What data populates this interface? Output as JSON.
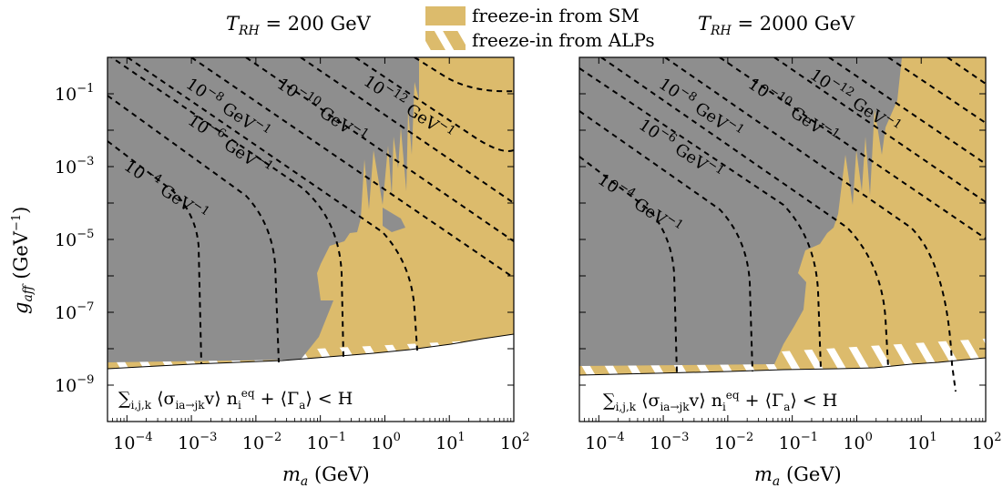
{
  "legend": {
    "sm_label": "freeze-in from SM",
    "alps_label": "freeze-in from ALPs"
  },
  "colors": {
    "sm_fill": "#dcbb6c",
    "excluded_fill": "#8e8e8e",
    "allowed_fill": "#ffffff",
    "contour": "#000000"
  },
  "chart_data": [
    {
      "type": "area",
      "title": "T_RH = 200 GeV",
      "xlabel": "m_a (GeV)",
      "ylabel": "g_aff (GeV^-1)",
      "xscale": "log",
      "yscale": "log",
      "xlim": [
        5e-05,
        100
      ],
      "ylim": [
        1e-10,
        1
      ],
      "x_ticks": [
        "10^-4",
        "10^-3",
        "10^-2",
        "10^-1",
        "10^0",
        "10^1",
        "10^2"
      ],
      "y_ticks": [
        "10^-1",
        "10^-3",
        "10^-5",
        "10^-7",
        "10^-9"
      ],
      "regions": [
        {
          "name": "freeze-in from SM",
          "style": "solid"
        },
        {
          "name": "freeze-in from ALPs",
          "style": "hatched"
        },
        {
          "name": "excluded",
          "style": "gray"
        }
      ],
      "contour_labels": [
        {
          "value": "10^-4 GeV^-1"
        },
        {
          "value": "10^-6 GeV^-1"
        },
        {
          "value": "10^-8 GeV^-1"
        },
        {
          "value": "10^-10 GeV^-1"
        },
        {
          "value": "10^-12 GeV^-1"
        }
      ],
      "vertical_contour_x": [
        0.0015,
        0.025,
        0.3,
        3.5
      ],
      "annotation": "Σ_{i,j,k} ⟨σ_{ia→jk} v⟩ n_i^eq + ⟨Γ_a⟩ < H"
    },
    {
      "type": "area",
      "title": "T_RH = 2000 GeV",
      "xlabel": "m_a (GeV)",
      "ylabel": "",
      "xscale": "log",
      "yscale": "log",
      "xlim": [
        5e-05,
        100
      ],
      "ylim": [
        1e-10,
        1
      ],
      "x_ticks": [
        "10^-4",
        "10^-3",
        "10^-2",
        "10^-1",
        "10^0",
        "10^1",
        "10^2"
      ],
      "regions": [
        {
          "name": "freeze-in from SM",
          "style": "solid"
        },
        {
          "name": "freeze-in from ALPs",
          "style": "hatched"
        },
        {
          "name": "excluded",
          "style": "gray"
        }
      ],
      "contour_labels": [
        {
          "value": "10^-4 GeV^-1"
        },
        {
          "value": "10^-6 GeV^-1"
        },
        {
          "value": "10^-8 GeV^-1"
        },
        {
          "value": "10^-10 GeV^-1"
        },
        {
          "value": "10^-12 GeV^-1"
        }
      ],
      "vertical_contour_x": [
        0.0015,
        0.025,
        0.3,
        3.5,
        35
      ],
      "annotation": "Σ_{i,j,k} ⟨σ_{ia→jk} v⟩ n_i^eq + ⟨Γ_a⟩ < H"
    }
  ]
}
